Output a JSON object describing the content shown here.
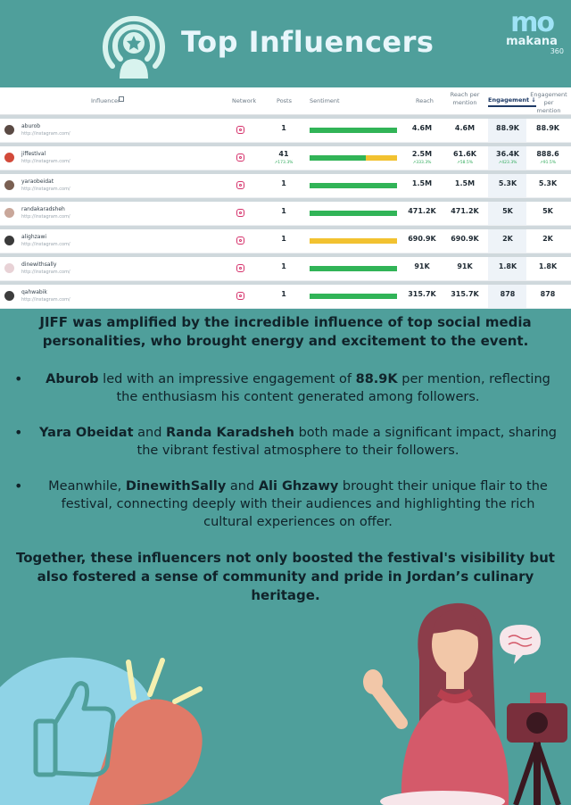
{
  "header": {
    "title": "Top Influencers",
    "logo_icon": "podcast-star-icon",
    "brand": {
      "mark": "mo",
      "name": "makana",
      "sub": "360"
    }
  },
  "table": {
    "columns": {
      "influencer": "Influencer",
      "network": "Network",
      "posts": "Posts",
      "sentiment": "Sentiment",
      "reach": "Reach",
      "reach_per_mention_1": "Reach per",
      "reach_per_mention_2": "mention",
      "engagement": "Engagement ↓",
      "eng_per_mention_1": "Engagement per",
      "eng_per_mention_2": "mention"
    },
    "rows": [
      {
        "name": "aburob",
        "link": "http://instagram.com/",
        "posts": "1",
        "posts_delta": "",
        "reach": "4.6M",
        "reach_delta": "",
        "reach_pm": "4.6M",
        "reach_pm_delta": "",
        "engagement": "88.9K",
        "eng_delta": "",
        "eng_pm": "88.9K",
        "eng_pm_delta": "",
        "positive": 1.0,
        "neutral": 0.0,
        "avatar_color": "#5a4a44"
      },
      {
        "name": "jiffestival",
        "link": "http://instagram.com/",
        "posts": "41",
        "posts_delta": "↗173.3%",
        "reach": "2.5M",
        "reach_delta": "↗333.3%",
        "reach_pm": "61.6K",
        "reach_pm_delta": "↗58.5%",
        "engagement": "36.4K",
        "eng_delta": "↗423.3%",
        "eng_pm": "888.6",
        "eng_pm_delta": "↗91.5%",
        "positive": 0.64,
        "neutral": 0.36,
        "avatar_color": "#d24a3a"
      },
      {
        "name": "yaraobeidat",
        "link": "http://instagram.com/",
        "posts": "1",
        "posts_delta": "",
        "reach": "1.5M",
        "reach_delta": "",
        "reach_pm": "1.5M",
        "reach_pm_delta": "",
        "engagement": "5.3K",
        "eng_delta": "",
        "eng_pm": "5.3K",
        "eng_pm_delta": "",
        "positive": 1.0,
        "neutral": 0.0,
        "avatar_color": "#7a6052"
      },
      {
        "name": "randakaradsheh",
        "link": "http://instagram.com/",
        "posts": "1",
        "posts_delta": "",
        "reach": "471.2K",
        "reach_delta": "",
        "reach_pm": "471.2K",
        "reach_pm_delta": "",
        "engagement": "5K",
        "eng_delta": "",
        "eng_pm": "5K",
        "eng_pm_delta": "",
        "positive": 1.0,
        "neutral": 0.0,
        "avatar_color": "#c9a79a"
      },
      {
        "name": "alighzawi",
        "link": "http://instagram.com/",
        "posts": "1",
        "posts_delta": "",
        "reach": "690.9K",
        "reach_delta": "",
        "reach_pm": "690.9K",
        "reach_pm_delta": "",
        "engagement": "2K",
        "eng_delta": "",
        "eng_pm": "2K",
        "eng_pm_delta": "",
        "positive": 0.0,
        "neutral": 1.0,
        "avatar_color": "#3a3a3a"
      },
      {
        "name": "dinewithsally",
        "link": "http://instagram.com/",
        "posts": "1",
        "posts_delta": "",
        "reach": "91K",
        "reach_delta": "",
        "reach_pm": "91K",
        "reach_pm_delta": "",
        "engagement": "1.8K",
        "eng_delta": "",
        "eng_pm": "1.8K",
        "eng_pm_delta": "",
        "positive": 1.0,
        "neutral": 0.0,
        "avatar_color": "#e8d2d6"
      },
      {
        "name": "qahwabik",
        "link": "http://instagram.com/",
        "posts": "1",
        "posts_delta": "",
        "reach": "315.7K",
        "reach_delta": "",
        "reach_pm": "315.7K",
        "reach_pm_delta": "",
        "engagement": "878",
        "eng_delta": "",
        "eng_pm": "878",
        "eng_pm_delta": "",
        "positive": 1.0,
        "neutral": 0.0,
        "avatar_color": "#3d3d3d"
      }
    ]
  },
  "text": {
    "intro": "JIFF was amplified by the incredible influence of top social media personalities, who brought energy and excitement to the event.",
    "b1_name": "Aburob",
    "b1_a": " led with an impressive engagement of ",
    "b1_val": "88.9K",
    "b1_b": " per mention, reflecting the enthusiasm his content generated among followers.",
    "b2_name1": "Yara Obeidat",
    "b2_and": " and ",
    "b2_name2": "Randa Karadsheh",
    "b2_rest": " both made a significant impact, sharing the vibrant festival atmosphere to their followers.",
    "b3_pre": "Meanwhile, ",
    "b3_name1": "DinewithSally",
    "b3_and": " and ",
    "b3_name2": "Ali Ghzawy",
    "b3_rest": " brought their unique flair to the festival, connecting deeply with their audiences and highlighting the rich cultural experiences on offer.",
    "outro": "Together, these influencers not only boosted the festival's visibility but also fostered a sense of community and pride in Jordan’s culinary heritage."
  },
  "illustration": {
    "left": "thumbs-up-heart-icon",
    "right": "woman-waving-with-camera-icon"
  },
  "colors": {
    "background": "#4f9f9b",
    "positive": "#31b457",
    "neutral": "#f2c230",
    "instagram": "#d6336c"
  }
}
